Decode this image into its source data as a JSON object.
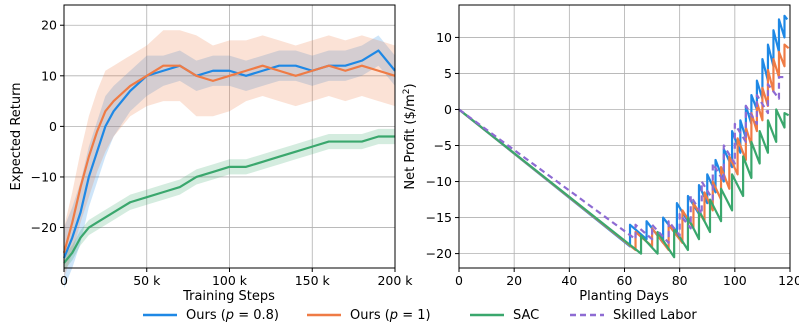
{
  "chart_data": [
    {
      "type": "line",
      "xlabel": "Training Steps",
      "ylabel": "Expected Return",
      "xlim": [
        0,
        200000
      ],
      "ylim": [
        -28,
        24
      ],
      "xticks": [
        0,
        50000,
        100000,
        150000,
        200000
      ],
      "xtick_labels": [
        "0",
        "50 k",
        "100 k",
        "150 k",
        "200 k"
      ],
      "yticks": [
        -20,
        -10,
        0,
        10,
        20
      ],
      "ytick_labels": [
        "−20",
        "−10",
        "0",
        "10",
        "20"
      ],
      "grid": true,
      "series": [
        {
          "name": "Ours (p=0.8)",
          "color": "#1e88e5",
          "x": [
            0,
            5000,
            10000,
            15000,
            20000,
            25000,
            30000,
            40000,
            50000,
            60000,
            70000,
            80000,
            90000,
            100000,
            110000,
            120000,
            130000,
            140000,
            150000,
            160000,
            170000,
            180000,
            190000,
            200000
          ],
          "y": [
            -26,
            -22,
            -17,
            -10,
            -5,
            0,
            3,
            7,
            10,
            11,
            12,
            10,
            11,
            11,
            10,
            11,
            12,
            12,
            11,
            12,
            12,
            13,
            15,
            11
          ],
          "band": [
            6,
            6,
            6,
            6,
            6,
            6,
            5,
            4,
            4,
            3,
            3,
            3,
            3,
            3,
            3,
            3,
            3,
            3,
            3,
            3,
            3,
            3,
            3,
            3
          ]
        },
        {
          "name": "Ours (p=1)",
          "color": "#ef7b45",
          "x": [
            0,
            5000,
            10000,
            15000,
            20000,
            25000,
            30000,
            40000,
            50000,
            60000,
            70000,
            80000,
            90000,
            100000,
            110000,
            120000,
            130000,
            140000,
            150000,
            160000,
            170000,
            180000,
            190000,
            200000
          ],
          "y": [
            -25,
            -19,
            -12,
            -6,
            -1,
            3,
            5,
            8,
            10,
            12,
            12,
            10,
            9,
            10,
            11,
            12,
            11,
            10,
            11,
            12,
            11,
            12,
            11,
            10
          ],
          "band": [
            5,
            6,
            7,
            8,
            8,
            8,
            7,
            6,
            6,
            7,
            7,
            8,
            7,
            7,
            6,
            6,
            6,
            6,
            6,
            6,
            6,
            6,
            6,
            6
          ]
        },
        {
          "name": "SAC",
          "color": "#3aa76d",
          "x": [
            0,
            5000,
            10000,
            15000,
            20000,
            30000,
            40000,
            50000,
            60000,
            70000,
            80000,
            90000,
            100000,
            110000,
            120000,
            130000,
            140000,
            150000,
            160000,
            170000,
            180000,
            190000,
            200000
          ],
          "y": [
            -27,
            -25,
            -22,
            -20,
            -19,
            -17,
            -15,
            -14,
            -13,
            -12,
            -10,
            -9,
            -8,
            -8,
            -7,
            -6,
            -5,
            -4,
            -3,
            -3,
            -3,
            -2,
            -2
          ],
          "band": [
            1.5,
            1.5,
            1.5,
            1.5,
            1.5,
            1.5,
            1.5,
            1.5,
            1.5,
            1.5,
            1.5,
            1.5,
            1.5,
            1.5,
            1.5,
            1.5,
            1.5,
            1.5,
            1.5,
            1.5,
            1.5,
            1.5,
            1.5
          ]
        }
      ]
    },
    {
      "type": "line",
      "xlabel": "Planting Days",
      "ylabel": "Net Profit ($/m",
      "ylabel_sup": "2",
      "ylabel_end": ")",
      "xlim": [
        0,
        120
      ],
      "ylim": [
        -22,
        14.5
      ],
      "xticks": [
        0,
        20,
        40,
        60,
        80,
        100,
        120
      ],
      "xtick_labels": [
        "0",
        "20",
        "40",
        "60",
        "80",
        "100",
        "120"
      ],
      "yticks": [
        -20,
        -15,
        -10,
        -5,
        0,
        5,
        10
      ],
      "ytick_labels": [
        "−20",
        "−15",
        "−10",
        "−5",
        "0",
        "5",
        "10"
      ],
      "grid": true,
      "series": [
        {
          "name": "Ours (p=0.8)",
          "color": "#1e88e5",
          "dash": false,
          "x": [
            0,
            62,
            62,
            68,
            68,
            74,
            74,
            79,
            79,
            83,
            83,
            87,
            87,
            90,
            90,
            93,
            93,
            96,
            96,
            99,
            99,
            102,
            102,
            104,
            104,
            106,
            106,
            108,
            108,
            110,
            110,
            112,
            112,
            114,
            114,
            116,
            116,
            118,
            118,
            119
          ],
          "y": [
            0,
            -19,
            -16,
            -18,
            -15.5,
            -18.5,
            -15,
            -17.5,
            -13,
            -15.5,
            -12,
            -14.5,
            -10.5,
            -13,
            -9,
            -11.5,
            -7,
            -10,
            -5.5,
            -8,
            -3,
            -6,
            -1.5,
            -4,
            0.5,
            -2,
            2,
            0,
            4,
            1.5,
            7,
            4,
            9,
            6,
            11,
            8,
            12.5,
            10,
            13,
            12.5
          ]
        },
        {
          "name": "Ours (p=1)",
          "color": "#ef7b45",
          "dash": false,
          "x": [
            0,
            64,
            64,
            70,
            70,
            76,
            76,
            81,
            81,
            85,
            85,
            89,
            89,
            92,
            92,
            95,
            95,
            98,
            98,
            101,
            101,
            104,
            104,
            106,
            106,
            108,
            108,
            110,
            110,
            112,
            112,
            114,
            114,
            116,
            116,
            118,
            118,
            119.5
          ],
          "y": [
            0,
            -19.5,
            -17,
            -19,
            -16.5,
            -19.5,
            -16,
            -18.5,
            -14,
            -16.5,
            -13,
            -15.5,
            -11.5,
            -14,
            -10,
            -12.5,
            -8,
            -11,
            -6.5,
            -9,
            -4,
            -7,
            -2.5,
            -5,
            -0.5,
            -3,
            1,
            -1.5,
            3,
            0.5,
            5.5,
            2.5,
            7,
            4.5,
            8,
            6,
            9,
            8.5
          ]
        },
        {
          "name": "SAC",
          "color": "#3aa76d",
          "dash": false,
          "x": [
            0,
            66,
            66,
            72,
            72,
            78,
            78,
            83,
            83,
            87,
            87,
            91,
            91,
            95,
            95,
            99,
            99,
            103,
            103,
            106,
            106,
            109,
            109,
            112,
            112,
            115,
            115,
            118,
            118,
            119.5
          ],
          "y": [
            0,
            -20,
            -17.5,
            -20,
            -17,
            -20.5,
            -16.5,
            -19.5,
            -15,
            -18,
            -14,
            -17,
            -12.5,
            -15.5,
            -11,
            -14,
            -9,
            -12,
            -6.5,
            -9.5,
            -4.5,
            -7.5,
            -3,
            -6,
            -1.5,
            -4.5,
            0,
            -2.5,
            -0.5,
            -0.8
          ]
        },
        {
          "name": "Skilled Labor",
          "color": "#8e6bd3",
          "dash": true,
          "x": [
            0,
            64,
            64,
            70,
            70,
            76,
            76,
            80,
            80,
            84,
            84,
            88,
            88,
            92,
            92,
            96,
            96,
            100,
            100,
            104,
            104,
            108,
            108,
            112,
            112,
            116,
            116,
            119
          ],
          "y": [
            0,
            -18,
            -16,
            -18,
            -16,
            -18.5,
            -15.5,
            -17.5,
            -14.5,
            -16.5,
            -12,
            -14.5,
            -10,
            -12.5,
            -7.5,
            -10,
            -5,
            -7.5,
            -2,
            -4.5,
            0.5,
            -2,
            2,
            -0.5,
            3.5,
            1.5,
            4.5,
            4.5
          ]
        }
      ]
    }
  ],
  "legend": {
    "placement": "bottom",
    "items": [
      {
        "pre": "Ours (",
        "math": "p",
        "post": " = 0.8)",
        "color": "#1e88e5",
        "dash": false
      },
      {
        "pre": "Ours (",
        "math": "p",
        "post": " = 1)",
        "color": "#ef7b45",
        "dash": false
      },
      {
        "pre": "SAC",
        "math": "",
        "post": "",
        "color": "#3aa76d",
        "dash": false
      },
      {
        "pre": "Skilled Labor",
        "math": "",
        "post": "",
        "color": "#8e6bd3",
        "dash": true
      }
    ]
  }
}
